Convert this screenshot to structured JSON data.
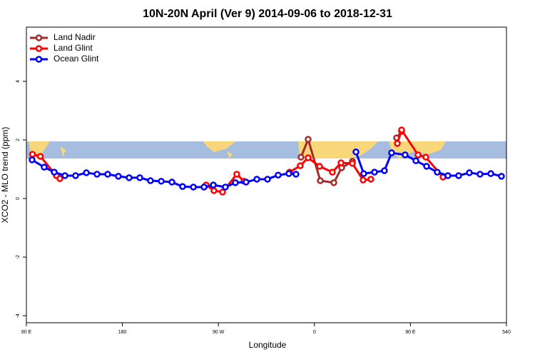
{
  "chart_data": {
    "type": "line",
    "title": "10N-20N April (Ver 9)   2014-09-06 to 2018-12-31",
    "xlabel": "Longitude",
    "ylabel": "XCO2 - MLO trend (ppm)",
    "xlim": [
      90,
      540
    ],
    "ylim": [
      -4.24,
      5.85
    ],
    "xticks": [
      {
        "value": 90,
        "label": "90 E"
      },
      180,
      {
        "value": 270,
        "label": "90 W"
      },
      {
        "value": 360,
        "label": "0"
      },
      {
        "value": 450,
        "label": "90 E"
      },
      540
    ],
    "yticks": [
      -4,
      -2,
      0,
      2,
      4
    ],
    "legend": "topleft",
    "series": [
      {
        "name": "Land Nadir",
        "color": "#a52a2a",
        "x": [
          347.4,
          354.1,
          365.5,
          378.2,
          385.5,
          395.6,
          null,
          437.0,
          441.7
        ],
        "values": [
          1.41,
          2.02,
          0.61,
          0.54,
          1.05,
          1.27,
          null,
          2.07,
          2.29
        ]
      },
      {
        "name": "Land Glint",
        "color": "#ff0000",
        "x": [
          95.7,
          103.1,
          118.1,
          121.4,
          null,
          258.5,
          265.8,
          273.9,
          287.2,
          293.9,
          null,
          336.7,
          346.7,
          354.1,
          364.8,
          376.8,
          384.9,
          395.6,
          405.6,
          412.9,
          null,
          437.7,
          441.7,
          457.1,
          464.4,
          480.5
        ],
        "values": [
          1.51,
          1.44,
          0.78,
          0.68,
          null,
          0.46,
          0.27,
          0.22,
          0.83,
          0.59,
          null,
          0.9,
          1.12,
          1.39,
          1.1,
          0.9,
          1.22,
          1.2,
          0.63,
          0.66,
          null,
          1.88,
          2.34,
          1.49,
          1.41,
          0.73
        ]
      },
      {
        "name": "Ocean Glint",
        "color": "#0000ff",
        "x": [
          95.3,
          106.7,
          116.1,
          126.1,
          136.1,
          146.2,
          156.2,
          166.2,
          176.2,
          186.3,
          196.3,
          206.3,
          216.4,
          226.4,
          236.4,
          246.5,
          256.5,
          265.2,
          276.5,
          285.9,
          295.9,
          306.0,
          316.0,
          326.0,
          336.0,
          342.7,
          null,
          398.9,
          406.2,
          416.3,
          425.6,
          432.3,
          445.0,
          455.1,
          465.1,
          475.1,
          485.1,
          495.2,
          505.2,
          515.2,
          525.3,
          535.3
        ],
        "values": [
          1.32,
          1.07,
          0.9,
          0.78,
          0.78,
          0.88,
          0.83,
          0.83,
          0.76,
          0.71,
          0.71,
          0.61,
          0.59,
          0.56,
          0.41,
          0.39,
          0.39,
          0.46,
          0.39,
          0.54,
          0.56,
          0.66,
          0.66,
          0.8,
          0.85,
          0.83,
          null,
          1.59,
          0.85,
          0.9,
          0.95,
          1.56,
          1.49,
          1.29,
          1.1,
          0.9,
          0.78,
          0.78,
          0.88,
          0.83,
          0.85,
          0.76
        ]
      }
    ]
  }
}
